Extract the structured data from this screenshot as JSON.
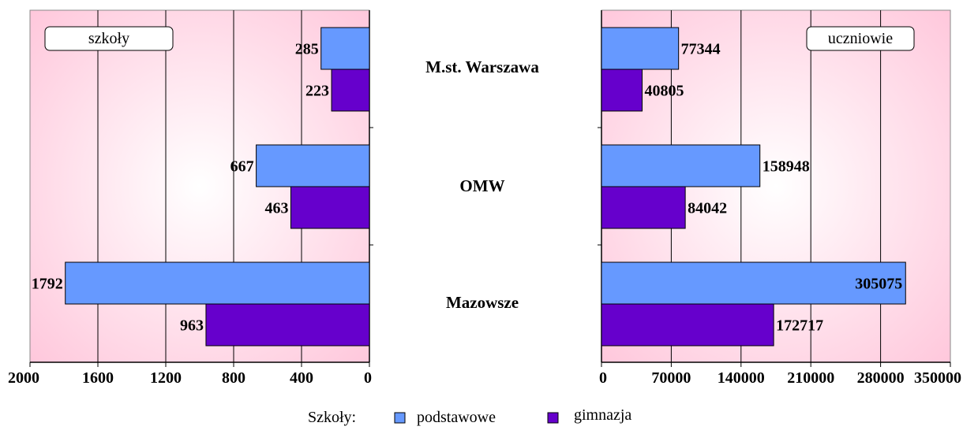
{
  "chart_data": [
    {
      "type": "bar",
      "orientation": "horizontal",
      "direction": "right-to-left",
      "title": "szkoły",
      "categories": [
        "M.st. Warszawa",
        "OMW",
        "Mazowsze"
      ],
      "series": [
        {
          "name": "podstawowe",
          "values": [
            285,
            667,
            1792
          ]
        },
        {
          "name": "gimnazja",
          "values": [
            223,
            463,
            963
          ]
        }
      ],
      "xlim": [
        0,
        2000
      ],
      "xticks": [
        2000,
        1600,
        1200,
        800,
        400,
        0
      ],
      "grid": true
    },
    {
      "type": "bar",
      "orientation": "horizontal",
      "direction": "left-to-right",
      "title": "uczniowie",
      "categories": [
        "M.st. Warszawa",
        "OMW",
        "Mazowsze"
      ],
      "series": [
        {
          "name": "podstawowe",
          "values": [
            77344,
            158948,
            305075
          ]
        },
        {
          "name": "gimnazja",
          "values": [
            40805,
            84042,
            172717
          ]
        }
      ],
      "xlim": [
        0,
        350000
      ],
      "xticks": [
        0,
        70000,
        140000,
        210000,
        280000,
        350000
      ],
      "grid": true
    }
  ],
  "legend": {
    "prefix": "Szkoły:",
    "items": [
      "podstawowe",
      "gimnazja"
    ]
  },
  "colors": {
    "podstawowe": "#6699ff",
    "gimnazja": "#6600cc",
    "panel_edge": "#ffc8dc",
    "panel_center": "#ffffff"
  }
}
